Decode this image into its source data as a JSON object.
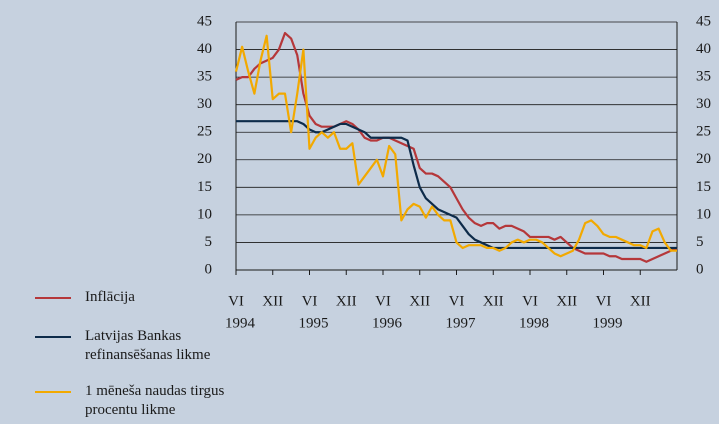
{
  "chart_data": {
    "type": "line",
    "categories": [
      "VI",
      null,
      null,
      null,
      null,
      null,
      "XII",
      null,
      null,
      null,
      null,
      null,
      "VI",
      null,
      null,
      null,
      null,
      null,
      "XII",
      null,
      null,
      null,
      null,
      null,
      "VI",
      null,
      null,
      null,
      null,
      null,
      "XII",
      null,
      null,
      null,
      null,
      null,
      "VI",
      null,
      null,
      null,
      null,
      null,
      "XII",
      null,
      null,
      null,
      null,
      null,
      "VI",
      null,
      null,
      null,
      null,
      null,
      "XII",
      null,
      null,
      null,
      null,
      null,
      "VI",
      null,
      null,
      null,
      null,
      null,
      "XII",
      null,
      null,
      null,
      null,
      null,
      null
    ],
    "year_labels": [
      "1994",
      "1995",
      "1996",
      "1997",
      "1998",
      "1999"
    ],
    "series": [
      {
        "name": "Inflācija",
        "color": "#b5373a",
        "values": [
          34.5,
          35,
          35,
          36.5,
          37.5,
          38,
          38.5,
          40,
          43,
          42,
          39,
          32,
          28,
          26.5,
          26,
          26,
          26,
          26.5,
          27,
          26.5,
          25.5,
          24,
          23.5,
          23.5,
          24,
          24,
          23.5,
          23,
          22.5,
          22,
          18.5,
          17.5,
          17.5,
          17,
          16,
          15,
          13,
          11,
          9.5,
          8.5,
          8,
          8.5,
          8.5,
          7.5,
          8,
          8,
          7.5,
          7,
          6,
          6,
          6,
          6,
          5.5,
          6,
          5,
          4,
          3.5,
          3,
          3,
          3,
          3,
          2.5,
          2.5,
          2,
          2,
          2,
          2,
          1.5,
          2,
          2.5,
          3,
          3.5,
          4
        ]
      },
      {
        "name": "Latvijas Bankas refinansēšanas likme",
        "color": "#0d2b4a",
        "values": [
          27,
          27,
          27,
          27,
          27,
          27,
          27,
          27,
          27,
          27,
          27,
          26.5,
          25.5,
          25,
          25,
          25.5,
          26,
          26.5,
          26.5,
          26,
          25.5,
          25,
          24,
          24,
          24,
          24,
          24,
          24,
          23.5,
          19,
          15,
          13,
          12,
          11,
          10.5,
          10,
          9.5,
          8,
          6.5,
          5.5,
          5,
          4.5,
          4,
          4,
          4,
          4,
          4,
          4,
          4,
          4,
          4,
          4,
          4,
          4,
          4,
          4,
          4,
          4,
          4,
          4,
          4,
          4,
          4,
          4,
          4,
          4,
          4,
          4,
          4,
          4,
          4,
          4,
          4
        ]
      },
      {
        "name": "1 mēneša naudas tirgus procentu likme",
        "color": "#f2a900",
        "values": [
          36,
          40.5,
          36,
          32,
          38,
          42.5,
          31,
          32,
          32,
          25,
          32,
          40,
          22,
          24,
          25,
          24,
          25,
          22,
          22,
          23,
          15.5,
          17,
          18.5,
          20,
          17,
          22.5,
          21,
          9,
          11,
          12,
          11.5,
          9.5,
          11.5,
          10,
          9,
          9,
          5,
          4,
          4.5,
          4.5,
          4.5,
          4,
          4,
          3.5,
          4,
          5,
          5.5,
          5,
          5.5,
          5.5,
          5,
          4,
          3,
          2.5,
          3,
          3.5,
          5.5,
          8.5,
          9,
          8,
          6.5,
          6,
          6,
          5.5,
          5,
          4.5,
          4.5,
          4,
          7,
          7.5,
          5,
          3.5,
          3.5
        ]
      }
    ],
    "ylim": [
      0,
      45
    ],
    "yticks": [
      0,
      5,
      10,
      15,
      20,
      25,
      30,
      35,
      40,
      45
    ],
    "grid": true,
    "right_axis_labels": true,
    "legend": "bottom-left"
  }
}
